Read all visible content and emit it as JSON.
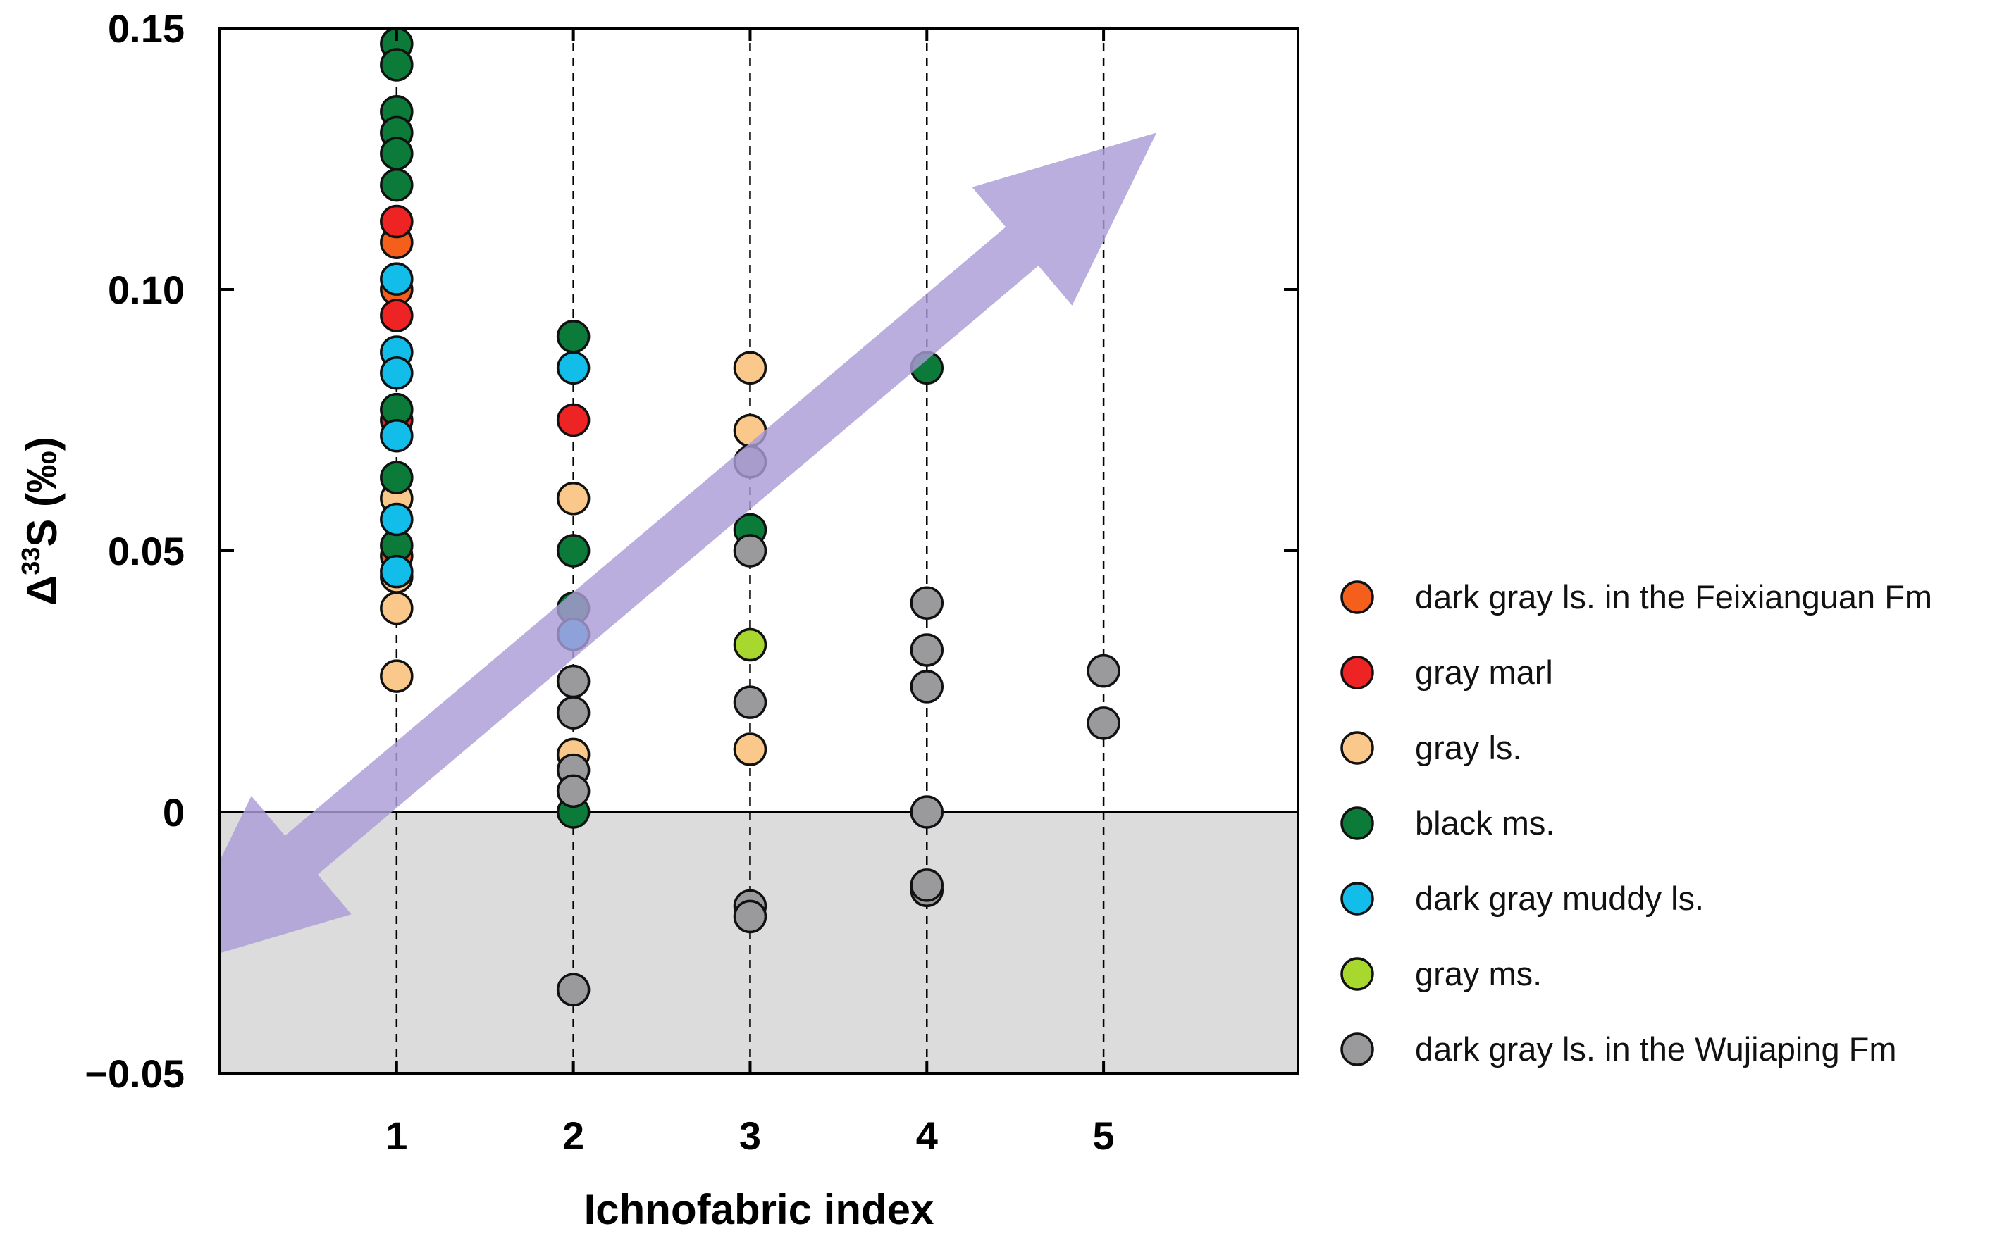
{
  "chart_data": {
    "type": "scatter",
    "title": "",
    "xlabel": "Ichnofabric index",
    "ylabel_delta": "Δ",
    "ylabel_sup": "33",
    "ylabel_rest": "S (‰)",
    "x_ticks": [
      "1",
      "2",
      "3",
      "4",
      "5"
    ],
    "y_ticks": [
      {
        "value": 0.15,
        "label": "0.15"
      },
      {
        "value": 0.1,
        "label": "0.10"
      },
      {
        "value": 0.05,
        "label": "0.05"
      },
      {
        "value": 0,
        "label": "0"
      },
      {
        "value": -0.05,
        "label": "−0.05"
      }
    ],
    "xlim": [
      0,
      6.1
    ],
    "ylim": [
      -0.05,
      0.15
    ],
    "negative_region_shaded": true,
    "gridlines": "vertical dashed at each index",
    "trend_arrow": {
      "from": [
        -0.3,
        -0.03
      ],
      "to": [
        5.3,
        0.13
      ],
      "style": "double-headed",
      "color": "#a99cd6"
    },
    "legend_position": "right",
    "series": [
      {
        "name": "dark gray ls. in the Feixianguan Fm",
        "color": "#f4601c",
        "points": [
          [
            1,
            0.1
          ],
          [
            1,
            0.109
          ],
          [
            1,
            0.049
          ]
        ]
      },
      {
        "name": "gray marl",
        "color": "#ee2424",
        "points": [
          [
            1,
            0.113
          ],
          [
            1,
            0.095
          ],
          [
            1,
            0.075
          ],
          [
            2,
            0.075
          ]
        ]
      },
      {
        "name": "gray ls.",
        "color": "#f9c88a",
        "points": [
          [
            1,
            0.06
          ],
          [
            1,
            0.045
          ],
          [
            1,
            0.039
          ],
          [
            1,
            0.026
          ],
          [
            2,
            0.06
          ],
          [
            2,
            0.011
          ],
          [
            3,
            0.085
          ],
          [
            3,
            0.073
          ],
          [
            3,
            0.012
          ]
        ]
      },
      {
        "name": "black ms.",
        "color": "#0c7a38",
        "points": [
          [
            1,
            0.147
          ],
          [
            1,
            0.143
          ],
          [
            1,
            0.134
          ],
          [
            1,
            0.13
          ],
          [
            1,
            0.126
          ],
          [
            1,
            0.12
          ],
          [
            1,
            0.077
          ],
          [
            1,
            0.064
          ],
          [
            1,
            0.051
          ],
          [
            2,
            0.091
          ],
          [
            2,
            0.05
          ],
          [
            2,
            0.039
          ],
          [
            2,
            0.0
          ],
          [
            3,
            0.054
          ],
          [
            4,
            0.085
          ]
        ]
      },
      {
        "name": "dark gray muddy ls.",
        "color": "#12bde9",
        "points": [
          [
            1,
            0.102
          ],
          [
            1,
            0.088
          ],
          [
            1,
            0.084
          ],
          [
            1,
            0.072
          ],
          [
            1,
            0.056
          ],
          [
            1,
            0.046
          ],
          [
            2,
            0.085
          ],
          [
            2,
            0.034
          ]
        ]
      },
      {
        "name": "gray ms.",
        "color": "#a8d72e",
        "points": [
          [
            3,
            0.032
          ]
        ]
      },
      {
        "name": "dark gray ls. in the Wujiaping Fm",
        "color": "#9a9a9c",
        "points": [
          [
            2,
            0.025
          ],
          [
            2,
            0.019
          ],
          [
            2,
            0.008
          ],
          [
            2,
            0.004
          ],
          [
            2,
            -0.034
          ],
          [
            3,
            0.067
          ],
          [
            3,
            0.05
          ],
          [
            3,
            0.021
          ],
          [
            3,
            -0.018
          ],
          [
            3,
            -0.02
          ],
          [
            4,
            0.04
          ],
          [
            4,
            0.031
          ],
          [
            4,
            0.024
          ],
          [
            4,
            0.0
          ],
          [
            4,
            -0.015
          ],
          [
            4,
            -0.014
          ],
          [
            5,
            0.027
          ],
          [
            5,
            0.017
          ]
        ]
      }
    ]
  }
}
